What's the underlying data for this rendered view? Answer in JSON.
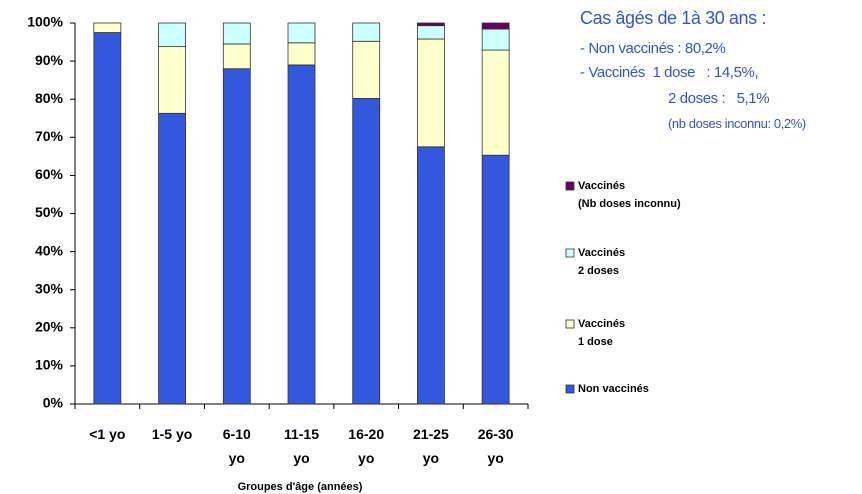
{
  "chart_data": {
    "type": "stacked_bar",
    "categories": [
      "<1 yo",
      "1-5 yo",
      "6-10\nyo",
      "11-15\nyo",
      "16-20\nyo",
      "21-25\nyo",
      "26-30\nyo"
    ],
    "series": [
      {
        "name": "Non vaccinés",
        "color": "#3357dd",
        "values": [
          97.5,
          76.3,
          88,
          89,
          80.2,
          67.5,
          65.3
        ]
      },
      {
        "name": "Vaccinés\n1 dose",
        "color": "#ffffcc",
        "values": [
          2.5,
          17.5,
          6.5,
          5.8,
          15,
          28.3,
          27.6
        ]
      },
      {
        "name": "Vaccinés\n2 doses",
        "color": "#ccffff",
        "values": [
          0,
          6.2,
          5.5,
          5.2,
          4.8,
          3.5,
          5.5
        ]
      },
      {
        "name": "Vaccinés\n(Nb doses inconnu)",
        "color": "#660066",
        "values": [
          0,
          0,
          0,
          0,
          0,
          0.7,
          1.6
        ]
      }
    ],
    "ylim": [
      0,
      100
    ],
    "yticks": [
      {
        "value": 0,
        "label": "0%"
      },
      {
        "value": 10,
        "label": "10%"
      },
      {
        "value": 20,
        "label": "20%"
      },
      {
        "value": 30,
        "label": "30%"
      },
      {
        "value": 40,
        "label": "40%"
      },
      {
        "value": 50,
        "label": "50%"
      },
      {
        "value": 60,
        "label": "60%"
      },
      {
        "value": 70,
        "label": "70%"
      },
      {
        "value": 80,
        "label": "80%"
      },
      {
        "value": 90,
        "label": "90%"
      },
      {
        "value": 100,
        "label": "100%"
      }
    ],
    "xlabel": "Groupes d'âge (années)",
    "legend": "right",
    "annotations": [
      "Cas âgés de 1à 30 ans :",
      "- Non vaccinés : 80,2%",
      "- Vaccinés  1 dose   : 14,5%,",
      "2 doses :   5,1%",
      "(nb doses inconnu: 0,2%)"
    ]
  }
}
